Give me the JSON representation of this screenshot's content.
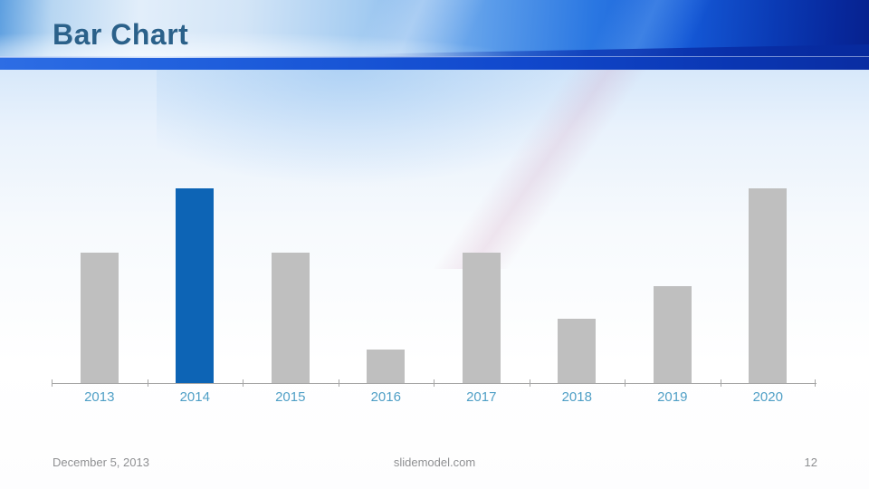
{
  "slide": {
    "title": "Bar Chart",
    "footer": {
      "date": "December 5, 2013",
      "website": "slidemodel.com",
      "page_number": "12"
    }
  },
  "chart_data": {
    "type": "bar",
    "categories": [
      "2013",
      "2014",
      "2015",
      "2016",
      "2017",
      "2018",
      "2019",
      "2020"
    ],
    "values": [
      3.35,
      5,
      3.35,
      0.85,
      3.35,
      1.65,
      2.5,
      5
    ],
    "highlight_index": 1,
    "title": "",
    "xlabel": "",
    "ylabel": "",
    "ylim": [
      0,
      5
    ],
    "grid": false,
    "legend": "none",
    "colors": {
      "default_bar": "#bfbfbf",
      "highlight_bar": "#0d64b5",
      "axis_line": "#a6a6a6",
      "tick_label": "#4f9fc6"
    }
  },
  "theme": {
    "header_accent": "#1148cc",
    "title_color": "#2b618a",
    "footer_text_color": "#8f9092"
  }
}
